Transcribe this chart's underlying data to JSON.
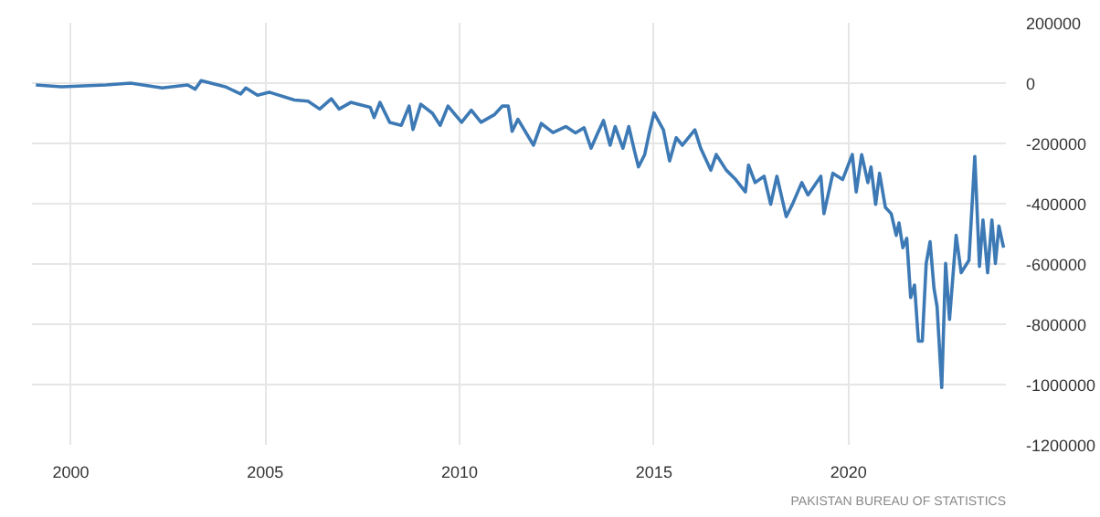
{
  "chart_data": {
    "type": "line",
    "color": "#3d7ab5",
    "x": [
      1999.1,
      1999.76,
      2000.9,
      2001.54,
      2002.35,
      2003.0,
      2003.2,
      2003.35,
      2003.97,
      2004.37,
      2004.5,
      2004.8,
      2005.1,
      2005.75,
      2006.1,
      2006.4,
      2006.7,
      2006.9,
      2007.2,
      2007.7,
      2007.8,
      2007.95,
      2008.2,
      2008.5,
      2008.7,
      2008.8,
      2009.0,
      2009.3,
      2009.5,
      2009.7,
      2010.05,
      2010.3,
      2010.55,
      2010.9,
      2011.1,
      2011.25,
      2011.35,
      2011.5,
      2011.9,
      2012.1,
      2012.4,
      2012.73,
      2012.98,
      2013.2,
      2013.38,
      2013.54,
      2013.7,
      2013.87,
      2014.0,
      2014.2,
      2014.35,
      2014.5,
      2014.6,
      2014.76,
      2014.87,
      2015.0,
      2015.24,
      2015.4,
      2015.57,
      2015.73,
      2016.05,
      2016.2,
      2016.46,
      2016.6,
      2016.86,
      2017.1,
      2017.35,
      2017.43,
      2017.6,
      2017.83,
      2018.0,
      2018.16,
      2018.4,
      2018.56,
      2018.8,
      2018.96,
      2019.29,
      2019.37,
      2019.6,
      2019.85,
      2020.1,
      2020.2,
      2020.34,
      2020.5,
      2020.58,
      2020.7,
      2020.8,
      2020.95,
      2021.1,
      2021.23,
      2021.3,
      2021.4,
      2021.5,
      2021.6,
      2021.7,
      2021.8,
      2021.9,
      2022.0,
      2022.1,
      2022.2,
      2022.28,
      2022.4,
      2022.5,
      2022.6,
      2022.77,
      2022.9,
      2023.1,
      2023.25,
      2023.37,
      2023.46,
      2023.58,
      2023.69,
      2023.78,
      2023.87,
      2023.99
    ],
    "values": [
      -6000,
      -12000,
      -6000,
      0,
      -16000,
      -6000,
      -20000,
      8000,
      -12000,
      -36000,
      -16000,
      -40000,
      -30000,
      -56000,
      -60000,
      -86000,
      -52000,
      -86000,
      -64000,
      -80000,
      -114000,
      -64000,
      -130000,
      -140000,
      -76000,
      -154000,
      -70000,
      -100000,
      -140000,
      -76000,
      -130000,
      -90000,
      -130000,
      -104000,
      -76000,
      -76000,
      -160000,
      -120000,
      -206000,
      -134000,
      -164000,
      -144000,
      -165000,
      -148000,
      -216000,
      -169000,
      -124000,
      -206000,
      -144000,
      -216000,
      -144000,
      -227000,
      -278000,
      -237000,
      -169000,
      -99000,
      -155000,
      -258000,
      -181000,
      -206000,
      -155000,
      -216000,
      -289000,
      -237000,
      -289000,
      -320000,
      -361000,
      -272000,
      -330000,
      -309000,
      -402000,
      -309000,
      -443000,
      -402000,
      -330000,
      -371000,
      -309000,
      -433000,
      -299000,
      -320000,
      -237000,
      -361000,
      -237000,
      -330000,
      -278000,
      -402000,
      -299000,
      -412000,
      -433000,
      -505000,
      -464000,
      -546000,
      -515000,
      -711000,
      -670000,
      -856000,
      -856000,
      -598000,
      -526000,
      -680000,
      -742000,
      -1010000,
      -598000,
      -784000,
      -505000,
      -629000,
      -588000,
      -243000,
      -608000,
      -454000,
      -629000,
      -454000,
      -598000,
      -474000,
      -546000
    ],
    "xlim": [
      1999.0,
      2024.05
    ],
    "xticks": [
      2000,
      2005,
      2010,
      2015,
      2020
    ],
    "ylim": [
      -1200000,
      200000
    ],
    "yticks": [
      -1200000,
      -1000000,
      -800000,
      -600000,
      -400000,
      -200000,
      0,
      200000
    ],
    "grid": true,
    "line_style": "solid",
    "marker": "none",
    "annotations": [
      "PAKISTAN BUREAU OF STATISTICS"
    ]
  }
}
